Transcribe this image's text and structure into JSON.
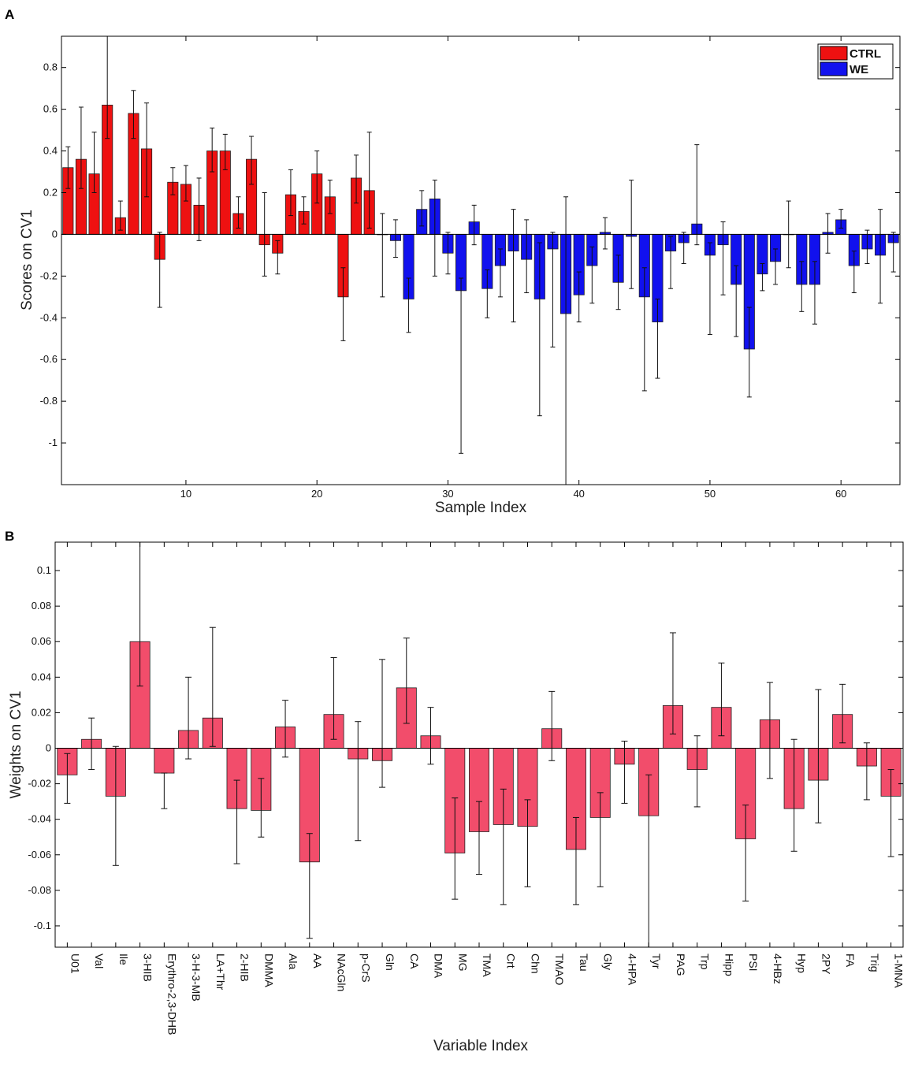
{
  "chart_data": [
    {
      "panel": "A",
      "type": "bar",
      "xlabel": "Sample Index",
      "ylabel": "Scores on CV1",
      "xlim": [
        0.5,
        64.5
      ],
      "ylim": [
        -1.2,
        0.95
      ],
      "xticks": [
        10,
        20,
        30,
        40,
        50,
        60
      ],
      "yticks": [
        0.8,
        0.6,
        0.4,
        0.2,
        0,
        -0.2,
        -0.4,
        -0.6,
        -0.8,
        -1
      ],
      "ytick_labels": [
        "0.8",
        "0.6",
        "0.4",
        "0.2",
        "0",
        "-0.2",
        "-0.4",
        "-0.6",
        "-0.8",
        "-1"
      ],
      "legend": {
        "position": "top-right",
        "entries": [
          {
            "name": "CTRL",
            "color": "#ee1111"
          },
          {
            "name": "WE",
            "color": "#1111ee"
          }
        ]
      },
      "series": [
        {
          "name": "CTRL",
          "color": "#ee1111",
          "x": [
            1,
            2,
            3,
            4,
            5,
            6,
            7,
            8,
            9,
            10,
            11,
            12,
            13,
            14,
            15,
            16,
            17,
            18,
            19,
            20,
            21,
            22,
            23,
            24
          ],
          "values": [
            0.32,
            0.36,
            0.29,
            0.62,
            0.08,
            0.58,
            0.41,
            -0.12,
            0.25,
            0.24,
            0.14,
            0.4,
            0.4,
            0.1,
            0.36,
            -0.05,
            -0.09,
            0.19,
            0.11,
            0.29,
            0.18,
            -0.3,
            0.27,
            0.21
          ],
          "err_low": [
            0.22,
            0.22,
            0.2,
            0.46,
            0.02,
            0.46,
            0.18,
            -0.35,
            0.19,
            0.16,
            -0.03,
            0.3,
            0.31,
            0.03,
            0.24,
            -0.2,
            -0.19,
            0.09,
            0.05,
            0.15,
            0.1,
            -0.51,
            0.15,
            0.03
          ],
          "err_high": [
            0.42,
            0.61,
            0.49,
            0.95,
            0.16,
            0.69,
            0.63,
            0.01,
            0.32,
            0.33,
            0.27,
            0.51,
            0.48,
            0.18,
            0.47,
            0.2,
            -0.03,
            0.31,
            0.18,
            0.4,
            0.26,
            -0.16,
            0.38,
            0.49
          ]
        },
        {
          "name": "WE",
          "color": "#1111ee",
          "x": [
            25,
            26,
            27,
            28,
            29,
            30,
            31,
            32,
            33,
            34,
            35,
            36,
            37,
            38,
            39,
            40,
            41,
            42,
            43,
            44,
            45,
            46,
            47,
            48,
            49,
            50,
            51,
            52,
            53,
            54,
            55,
            56,
            57,
            58,
            59,
            60,
            61,
            62,
            63,
            64
          ],
          "values": [
            0.0,
            -0.03,
            -0.31,
            0.12,
            0.17,
            -0.09,
            -0.27,
            0.06,
            -0.26,
            -0.15,
            -0.08,
            -0.12,
            -0.31,
            -0.07,
            -0.38,
            -0.29,
            -0.15,
            0.01,
            -0.23,
            -0.01,
            -0.3,
            -0.42,
            -0.08,
            -0.04,
            0.05,
            -0.1,
            -0.05,
            -0.24,
            -0.55,
            -0.19,
            -0.13,
            0.0,
            -0.24,
            -0.24,
            0.01,
            0.07,
            -0.15,
            -0.07,
            -0.1,
            -0.04
          ],
          "err_low": [
            -0.3,
            -0.11,
            -0.47,
            0.04,
            -0.2,
            -0.19,
            -1.05,
            -0.05,
            -0.4,
            -0.3,
            -0.42,
            -0.28,
            -0.87,
            -0.54,
            -1.2,
            -0.42,
            -0.33,
            -0.07,
            -0.36,
            -0.26,
            -0.75,
            -0.69,
            -0.26,
            -0.14,
            -0.05,
            -0.48,
            -0.29,
            -0.49,
            -0.78,
            -0.27,
            -0.24,
            -0.16,
            -0.37,
            -0.43,
            -0.09,
            0.03,
            -0.28,
            -0.14,
            -0.33,
            -0.18
          ],
          "err_high": [
            0.1,
            0.07,
            -0.21,
            0.21,
            0.26,
            0.01,
            -0.21,
            0.14,
            -0.17,
            -0.07,
            0.12,
            0.07,
            -0.04,
            0.01,
            0.18,
            -0.18,
            -0.06,
            0.08,
            -0.1,
            0.26,
            -0.16,
            -0.31,
            -0.01,
            0.01,
            0.43,
            -0.04,
            0.06,
            -0.15,
            -0.35,
            -0.14,
            -0.07,
            0.16,
            -0.13,
            -0.13,
            0.1,
            0.12,
            -0.08,
            0.02,
            0.12,
            0.01
          ]
        }
      ]
    },
    {
      "panel": "B",
      "type": "bar",
      "xlabel": "Variable Index",
      "ylabel": "Weights on CV1",
      "ylim": [
        -0.112,
        0.116
      ],
      "yticks": [
        0.1,
        0.08,
        0.06,
        0.04,
        0.02,
        0,
        -0.02,
        -0.04,
        -0.06,
        -0.08,
        -0.1
      ],
      "ytick_labels": [
        "0.1",
        "0.08",
        "0.06",
        "0.04",
        "0.02",
        "0",
        "-0.02",
        "-0.04",
        "-0.06",
        "-0.08",
        "-0.1"
      ],
      "color": "#f24d6b",
      "categories": [
        "U01",
        "Val",
        "Ile",
        "3-HIB",
        "Erythro-2,3-DHB",
        "3-H-3-MB",
        "LA+Thr",
        "2-HIB",
        "DMMA",
        "Ala",
        "AA",
        "NAcGln",
        "p-CrS",
        "Gln",
        "CA",
        "DMA",
        "MG",
        "TMA",
        "Crt",
        "Chn",
        "TMAO",
        "Tau",
        "Gly",
        "4-HPA",
        "Tyr",
        "PAG",
        "Trp",
        "Hipp",
        "PSI",
        "4-HBz",
        "Hyp",
        "2PY",
        "FA",
        "Trig",
        "1-MNA"
      ],
      "values": [
        -0.015,
        0.005,
        -0.027,
        0.06,
        -0.014,
        0.01,
        0.017,
        -0.034,
        -0.035,
        0.012,
        -0.064,
        0.019,
        -0.006,
        -0.007,
        0.034,
        0.007,
        -0.059,
        -0.047,
        -0.043,
        -0.044,
        0.011,
        -0.057,
        -0.039,
        -0.009,
        -0.038,
        0.024,
        -0.012,
        0.023,
        -0.051,
        0.016,
        -0.034,
        -0.018,
        0.019,
        -0.01,
        -0.027
      ],
      "err_low": [
        -0.031,
        -0.012,
        -0.066,
        0.035,
        -0.034,
        -0.006,
        0.001,
        -0.065,
        -0.05,
        -0.005,
        -0.107,
        0.005,
        -0.052,
        -0.022,
        0.014,
        -0.009,
        -0.085,
        -0.071,
        -0.088,
        -0.078,
        -0.007,
        -0.088,
        -0.078,
        -0.031,
        -0.112,
        0.008,
        -0.033,
        0.007,
        -0.086,
        -0.017,
        -0.058,
        -0.042,
        0.003,
        -0.029,
        -0.061
      ],
      "err_high": [
        -0.003,
        0.017,
        0.001,
        0.116,
        -0.014,
        0.04,
        0.068,
        -0.018,
        -0.017,
        0.027,
        -0.048,
        0.051,
        0.015,
        0.05,
        0.062,
        0.023,
        -0.028,
        -0.03,
        -0.023,
        -0.029,
        0.032,
        -0.039,
        -0.025,
        0.004,
        -0.015,
        0.065,
        0.007,
        0.048,
        -0.032,
        0.037,
        0.005,
        0.033,
        0.036,
        0.003,
        -0.012
      ]
    }
  ]
}
